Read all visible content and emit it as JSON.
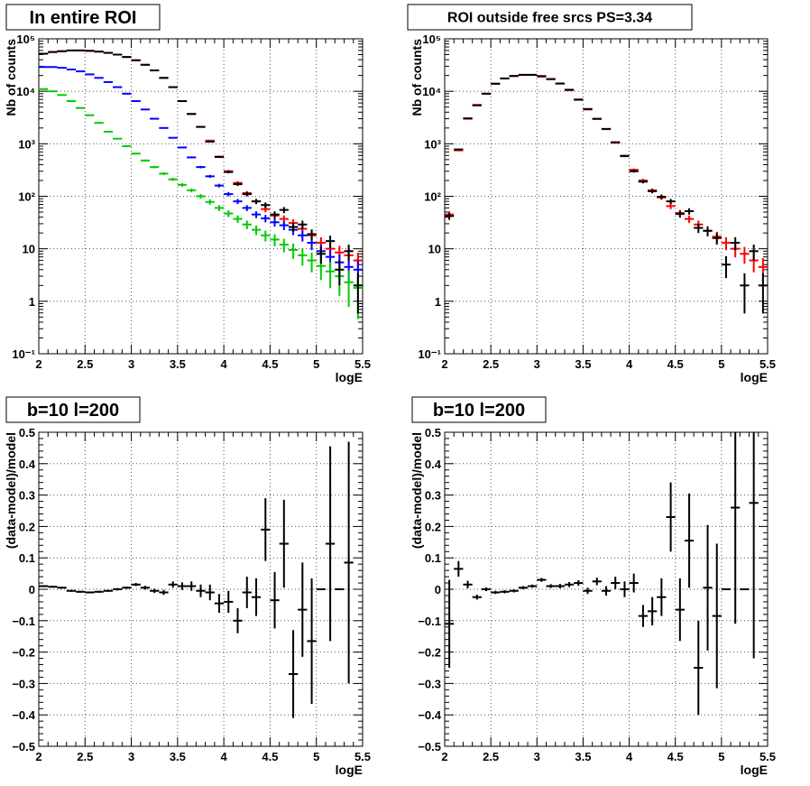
{
  "chart_data": [
    {
      "id": "roi",
      "type": "scatter",
      "title": "In entire ROI",
      "xlabel": "logE",
      "ylabel": "Nb of counts",
      "xlim": [
        2,
        5.5
      ],
      "ylim": [
        0.1,
        100000
      ],
      "log_y": true,
      "grid": true,
      "x_ticks": [
        "2",
        "2.5",
        "3",
        "3.5",
        "4",
        "4.5",
        "5",
        "5.5"
      ],
      "y_ticks": [
        "10⁻¹",
        "1",
        "10",
        "10²",
        "10³",
        "10⁴",
        "10⁵"
      ],
      "series": [
        {
          "color": "#ff0000",
          "x_half_width": 0.05,
          "x": [
            2.05,
            2.15,
            2.25,
            2.35,
            2.45,
            2.55,
            2.65,
            2.75,
            2.85,
            2.95,
            3.05,
            3.15,
            3.25,
            3.35,
            3.45,
            3.55,
            3.65,
            3.75,
            3.85,
            3.95,
            4.05,
            4.15,
            4.25,
            4.35,
            4.45,
            4.55,
            4.65,
            4.75,
            4.85,
            4.95,
            5.05,
            5.15,
            5.25,
            5.35,
            5.45
          ],
          "y": [
            52000,
            56000,
            58000,
            60000,
            60000,
            59000,
            57000,
            54000,
            50000,
            45000,
            39000,
            32000,
            25000,
            18000,
            12000,
            6500,
            3700,
            2100,
            1150,
            570,
            300,
            180,
            115,
            80,
            57,
            43,
            37,
            31,
            24,
            18,
            13,
            10,
            8.5,
            7.5,
            6
          ]
        },
        {
          "color": "#0000ff",
          "x_half_width": 0.05,
          "x": [
            2.05,
            2.15,
            2.25,
            2.35,
            2.45,
            2.55,
            2.65,
            2.75,
            2.85,
            2.95,
            3.05,
            3.15,
            3.25,
            3.35,
            3.45,
            3.55,
            3.65,
            3.75,
            3.85,
            3.95,
            4.05,
            4.15,
            4.25,
            4.35,
            4.45,
            4.55,
            4.65,
            4.75,
            4.85,
            4.95,
            5.05,
            5.15,
            5.25,
            5.35,
            5.45
          ],
          "y": [
            29000,
            29000,
            28000,
            26000,
            24000,
            21000,
            18000,
            15000,
            12000,
            9000,
            6500,
            4500,
            3000,
            2000,
            1300,
            850,
            550,
            360,
            240,
            160,
            110,
            80,
            60,
            45,
            38,
            32,
            28,
            23,
            18,
            13,
            9,
            7,
            5.5,
            4.5,
            4
          ]
        },
        {
          "color": "#00cc00",
          "x_half_width": 0.05,
          "x": [
            2.05,
            2.15,
            2.25,
            2.35,
            2.45,
            2.55,
            2.65,
            2.75,
            2.85,
            2.95,
            3.05,
            3.15,
            3.25,
            3.35,
            3.45,
            3.55,
            3.65,
            3.75,
            3.85,
            3.95,
            4.05,
            4.15,
            4.25,
            4.35,
            4.45,
            4.55,
            4.65,
            4.75,
            4.85,
            4.95,
            5.05,
            5.15,
            5.25,
            5.35,
            5.45
          ],
          "y": [
            11000,
            10000,
            8500,
            6500,
            4800,
            3500,
            2500,
            1700,
            1250,
            900,
            650,
            480,
            360,
            270,
            210,
            165,
            130,
            100,
            78,
            60,
            47,
            37,
            29,
            23,
            18,
            15,
            12,
            9.5,
            7.5,
            6,
            4.7,
            3.7,
            3,
            2.3,
            1.8
          ]
        },
        {
          "color": "#000000",
          "x_half_width": 0.05,
          "x": [
            2.05,
            2.15,
            2.25,
            2.35,
            2.45,
            2.55,
            2.65,
            2.75,
            2.85,
            2.95,
            3.05,
            3.15,
            3.25,
            3.35,
            3.45,
            3.55,
            3.65,
            3.75,
            3.85,
            3.95,
            4.05,
            4.15,
            4.25,
            4.35,
            4.45,
            4.55,
            4.65,
            4.75,
            4.85,
            4.95,
            5.05,
            5.15,
            5.25,
            5.35,
            5.45
          ],
          "y": [
            52000,
            56000,
            58000,
            60000,
            60000,
            59000,
            57000,
            54000,
            50000,
            45000,
            39000,
            32000,
            25000,
            18000,
            12000,
            6500,
            3700,
            2100,
            1100,
            560,
            290,
            170,
            110,
            80,
            68,
            45,
            55,
            26,
            29,
            19,
            8,
            14,
            4,
            9,
            2
          ]
        }
      ]
    },
    {
      "id": "outside",
      "type": "scatter",
      "title": "ROI outside free srcs PS=3.34",
      "xlabel": "logE",
      "ylabel": "Nb of counts",
      "xlim": [
        2,
        5.5
      ],
      "ylim": [
        0.1,
        100000
      ],
      "log_y": true,
      "grid": true,
      "x_ticks": [
        "2",
        "2.5",
        "3",
        "3.5",
        "4",
        "4.5",
        "5",
        "5.5"
      ],
      "y_ticks": [
        "10⁻¹",
        "1",
        "10",
        "10²",
        "10³",
        "10⁴",
        "10⁵"
      ],
      "series": [
        {
          "color": "#ff0000",
          "x_half_width": 0.05,
          "x": [
            2.05,
            2.15,
            2.25,
            2.35,
            2.45,
            2.55,
            2.65,
            2.75,
            2.85,
            2.95,
            3.05,
            3.15,
            3.25,
            3.35,
            3.45,
            3.55,
            3.65,
            3.75,
            3.85,
            3.95,
            4.05,
            4.15,
            4.25,
            4.35,
            4.45,
            4.55,
            4.65,
            4.75,
            4.85,
            4.95,
            5.05,
            5.15,
            5.25,
            5.35,
            5.45
          ],
          "y": [
            45,
            750,
            3000,
            5500,
            9000,
            14000,
            17500,
            19500,
            20500,
            20500,
            19000,
            17000,
            14000,
            10500,
            7000,
            4500,
            3000,
            1900,
            1050,
            580,
            320,
            200,
            130,
            95,
            65,
            48,
            37,
            29,
            22,
            17,
            13,
            10,
            8,
            6,
            4.5
          ]
        },
        {
          "color": "#000000",
          "x_half_width": 0.05,
          "x": [
            2.05,
            2.15,
            2.25,
            2.35,
            2.45,
            2.55,
            2.65,
            2.75,
            2.85,
            2.95,
            3.05,
            3.15,
            3.25,
            3.35,
            3.45,
            3.55,
            3.65,
            3.75,
            3.85,
            3.95,
            4.05,
            4.15,
            4.25,
            4.35,
            4.45,
            4.55,
            4.65,
            4.75,
            4.85,
            4.95,
            5.05,
            5.15,
            5.25,
            5.35,
            5.45
          ],
          "y": [
            42,
            780,
            3050,
            5400,
            9000,
            13900,
            17600,
            19600,
            20600,
            20600,
            19500,
            17100,
            14100,
            10700,
            6900,
            4600,
            2980,
            1920,
            1070,
            590,
            300,
            190,
            125,
            98,
            80,
            46,
            52,
            25,
            22,
            16,
            5,
            13,
            2,
            9,
            2
          ]
        }
      ]
    },
    {
      "id": "resid1",
      "type": "scatter",
      "title": "b=10 l=200",
      "xlabel": "logE",
      "ylabel": "(data-model)/model",
      "xlim": [
        2,
        5.5
      ],
      "ylim": [
        -0.5,
        0.5
      ],
      "log_y": false,
      "grid": true,
      "x_ticks": [
        "2",
        "2.5",
        "3",
        "3.5",
        "4",
        "4.5",
        "5",
        "5.5"
      ],
      "y_ticks": [
        "−0.5",
        "−0.4",
        "−0.3",
        "−0.2",
        "−0.1",
        "0",
        "0.1",
        "0.2",
        "0.3",
        "0.4",
        "0.5"
      ],
      "series": [
        {
          "color": "#000000",
          "x_half_width": 0.05,
          "x": [
            2.05,
            2.15,
            2.25,
            2.35,
            2.45,
            2.55,
            2.65,
            2.75,
            2.85,
            2.95,
            3.05,
            3.15,
            3.25,
            3.35,
            3.45,
            3.55,
            3.65,
            3.75,
            3.85,
            3.95,
            4.05,
            4.15,
            4.25,
            4.35,
            4.45,
            4.55,
            4.65,
            4.75,
            4.85,
            4.95,
            5.05,
            5.15,
            5.25,
            5.35
          ],
          "y": [
            0.01,
            0.008,
            0.005,
            -0.005,
            -0.008,
            -0.01,
            -0.008,
            -0.005,
            0.0,
            0.005,
            0.015,
            0.005,
            -0.005,
            -0.01,
            0.015,
            0.01,
            0.01,
            -0.005,
            -0.01,
            -0.045,
            -0.04,
            -0.1,
            -0.01,
            -0.025,
            0.19,
            -0.035,
            0.145,
            -0.27,
            -0.065,
            -0.165,
            0.0,
            0.145,
            0.0,
            0.085
          ],
          "err": [
            0.003,
            0.003,
            0.003,
            0.003,
            0.003,
            0.003,
            0.003,
            0.003,
            0.004,
            0.004,
            0.005,
            0.006,
            0.007,
            0.008,
            0.01,
            0.012,
            0.015,
            0.02,
            0.025,
            0.03,
            0.035,
            0.04,
            0.05,
            0.06,
            0.1,
            0.09,
            0.14,
            0.14,
            0.15,
            0.2,
            0.0,
            0.31,
            0.0,
            0.385
          ]
        }
      ]
    },
    {
      "id": "resid2",
      "type": "scatter",
      "title": "b=10 l=200",
      "xlabel": "logE",
      "ylabel": "(data-model)/model",
      "xlim": [
        2,
        5.5
      ],
      "ylim": [
        -0.5,
        0.5
      ],
      "log_y": false,
      "grid": true,
      "x_ticks": [
        "2",
        "2.5",
        "3",
        "3.5",
        "4",
        "4.5",
        "5",
        "5.5"
      ],
      "y_ticks": [
        "−0.5",
        "−0.4",
        "−0.3",
        "−0.2",
        "−0.1",
        "0",
        "0.1",
        "0.2",
        "0.3",
        "0.4",
        "0.5"
      ],
      "series": [
        {
          "color": "#000000",
          "x_half_width": 0.05,
          "x": [
            2.05,
            2.15,
            2.25,
            2.35,
            2.45,
            2.55,
            2.65,
            2.75,
            2.85,
            2.95,
            3.05,
            3.15,
            3.25,
            3.35,
            3.45,
            3.55,
            3.65,
            3.75,
            3.85,
            3.95,
            4.05,
            4.15,
            4.25,
            4.35,
            4.45,
            4.55,
            4.65,
            4.75,
            4.85,
            4.95,
            5.05,
            5.15,
            5.25,
            5.35
          ],
          "y": [
            -0.11,
            0.065,
            0.015,
            -0.025,
            0.0,
            -0.01,
            -0.008,
            -0.005,
            0.005,
            0.01,
            0.03,
            0.01,
            0.01,
            0.015,
            0.02,
            -0.005,
            0.025,
            -0.005,
            0.02,
            0.0,
            0.02,
            -0.085,
            -0.07,
            -0.025,
            0.23,
            -0.065,
            0.155,
            -0.25,
            0.005,
            -0.085,
            0.0,
            0.26,
            0.0,
            0.275
          ],
          "err": [
            0.14,
            0.025,
            0.012,
            0.008,
            0.006,
            0.005,
            0.005,
            0.005,
            0.005,
            0.005,
            0.006,
            0.006,
            0.007,
            0.008,
            0.009,
            0.01,
            0.012,
            0.015,
            0.02,
            0.025,
            0.03,
            0.035,
            0.045,
            0.06,
            0.11,
            0.1,
            0.15,
            0.15,
            0.2,
            0.23,
            0.0,
            0.37,
            0.0,
            0.495
          ]
        }
      ]
    }
  ]
}
